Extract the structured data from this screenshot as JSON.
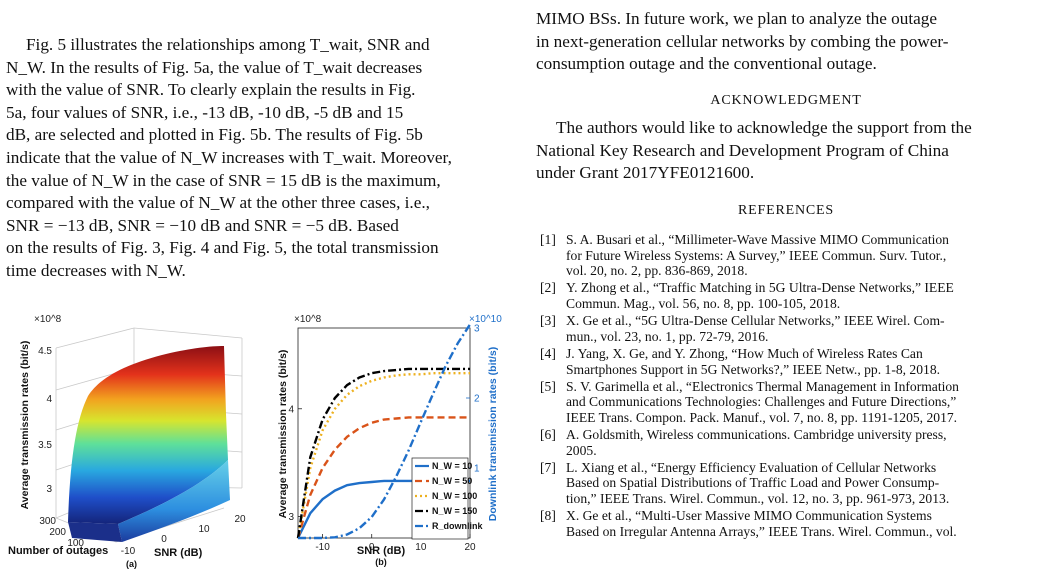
{
  "left_top_fragment": "",
  "left_paragraph": [
    "Fig. 5 illustrates the relationships among T_wait, SNR and",
    "N_W. In the results of Fig. 5a, the value of T_wait decreases",
    "with the value of SNR. To clearly explain the results in Fig.",
    "5a, four values of SNR, i.e., -13 dB, -10 dB, -5 dB and 15",
    "dB, are selected and plotted in Fig. 5b. The results of Fig. 5b",
    "indicate that the value of N_W increases with T_wait. Moreover,",
    "the value of N_W in the case of SNR = 15 dB is the maximum,",
    "compared with the value of N_W at the other three cases, i.e.,",
    "SNR = −13 dB, SNR = −10 dB and SNR = −5 dB. Based",
    "on the results of Fig. 3, Fig. 4 and Fig. 5, the total transmission",
    "time decreases with N_W."
  ],
  "right_intro": [
    "MIMO BSs. In future work, we plan to analyze the outage",
    "in next-generation cellular networks by combing the power-",
    "consumption outage and the conventional outage."
  ],
  "acknowledgment": {
    "heading": "ACKNOWLEDGMENT",
    "lines": [
      "The authors would like to acknowledge the support from the",
      "National Key Research and Development Program of China",
      "under Grant 2017YFE0121600."
    ]
  },
  "references": {
    "heading": "REFERENCES",
    "items": [
      {
        "num": "[1]",
        "lines": [
          "S. A. Busari et al., “Millimeter-Wave Massive MIMO Communication",
          "for Future Wireless Systems: A Survey,” IEEE Commun. Surv. Tutor.,",
          "vol. 20, no. 2, pp. 836-869, 2018."
        ]
      },
      {
        "num": "[2]",
        "lines": [
          "Y. Zhong et al., “Traffic Matching in 5G Ultra-Dense Networks,” IEEE",
          "Commun. Mag., vol. 56, no. 8, pp. 100-105, 2018."
        ]
      },
      {
        "num": "[3]",
        "lines": [
          "X. Ge et al., “5G Ultra-Dense Cellular Networks,” IEEE Wirel. Com-",
          "mun., vol. 23, no. 1, pp. 72-79, 2016."
        ]
      },
      {
        "num": "[4]",
        "lines": [
          "J. Yang, X. Ge, and Y. Zhong, “How Much of Wireless Rates Can",
          "Smartphones Support in 5G Networks?,” IEEE Netw., pp. 1-8, 2018."
        ]
      },
      {
        "num": "[5]",
        "lines": [
          "S. V. Garimella et al., “Electronics Thermal Management in Information",
          "and Communications Technologies: Challenges and Future Directions,”",
          "IEEE Trans. Compon. Pack. Manuf., vol. 7, no. 8, pp. 1191-1205, 2017."
        ]
      },
      {
        "num": "[6]",
        "lines": [
          "A. Goldsmith, Wireless communications. Cambridge university press,",
          "2005."
        ]
      },
      {
        "num": "[7]",
        "lines": [
          "L. Xiang et al., “Energy Efficiency Evaluation of Cellular Networks",
          "Based on Spatial Distributions of Traffic Load and Power Consump-",
          "tion,” IEEE Trans. Wirel. Commun., vol. 12, no. 3, pp. 961-973, 2013."
        ]
      },
      {
        "num": "[8]",
        "lines": [
          "X. Ge et al., “Multi-User Massive MIMO Communication Systems",
          "Based on Irregular Antenna Arrays,” IEEE Trans. Wirel. Commun., vol."
        ]
      }
    ]
  },
  "chart_data": [
    {
      "type": "surface",
      "panel_label": "(a)",
      "zlabel": "Average transmission rates (bit/s)",
      "zscale_label": "×10^8",
      "xlabel": "SNR (dB)",
      "ylabel": "Number of outages",
      "z_ticks": [
        "3",
        "3.5",
        "4",
        "4.5"
      ],
      "x_ticks": [
        "-10",
        "0",
        "10",
        "20"
      ],
      "y_ticks": [
        "100",
        "200",
        "300"
      ],
      "zlim": [
        2.6,
        4.8
      ],
      "surface_z_corners": {
        "low_snr_high_outage": 2.7,
        "low_snr_low_outage": 4.3,
        "high_snr_low_outage": 4.65,
        "high_snr_high_outage": 4.65
      }
    },
    {
      "type": "line",
      "panel_label": "(b)",
      "xlabel": "SNR (dB)",
      "ylabel_left": "Average transmission rates (bit/s)",
      "ylabel_right": "Downlink transmission rates (bit/s)",
      "left_scale_label": "×10^8",
      "right_scale_label": "×10^10",
      "x_ticks": [
        -10,
        0,
        10,
        20
      ],
      "y_left_ticks": [
        3,
        4
      ],
      "y_right_ticks": [
        1,
        2,
        3
      ],
      "xlim": [
        -15,
        20
      ],
      "ylim_left": [
        2.8,
        4.75
      ],
      "ylim_right": [
        0,
        3
      ],
      "x": [
        -15,
        -12.5,
        -10,
        -7.5,
        -5,
        -2.5,
        0,
        2.5,
        5,
        7.5,
        10,
        12.5,
        15,
        17.5,
        20
      ],
      "series": [
        {
          "name": "N_W = 10",
          "color": "#1f6fc9",
          "dash": "solid",
          "axis": "left",
          "values": [
            2.8,
            3.03,
            3.16,
            3.24,
            3.29,
            3.31,
            3.32,
            3.33,
            3.33,
            3.33,
            3.33,
            3.33,
            3.33,
            3.33,
            3.33
          ]
        },
        {
          "name": "N_W = 50",
          "color": "#d95319",
          "dash": "dashed",
          "axis": "left",
          "values": [
            2.8,
            3.2,
            3.45,
            3.62,
            3.74,
            3.82,
            3.87,
            3.9,
            3.91,
            3.92,
            3.92,
            3.92,
            3.92,
            3.92,
            3.92
          ]
        },
        {
          "name": "N_W = 100",
          "color": "#edb120",
          "dash": "dotted",
          "axis": "left",
          "values": [
            2.8,
            3.45,
            3.8,
            4.0,
            4.13,
            4.21,
            4.26,
            4.29,
            4.31,
            4.32,
            4.32,
            4.33,
            4.33,
            4.33,
            4.33
          ]
        },
        {
          "name": "N_W = 150",
          "color": "#000000",
          "dash": "dashdot",
          "axis": "left",
          "values": [
            2.8,
            3.55,
            3.9,
            4.1,
            4.22,
            4.29,
            4.33,
            4.35,
            4.36,
            4.37,
            4.37,
            4.37,
            4.37,
            4.37,
            4.37
          ]
        },
        {
          "name": "R_downlink",
          "color": "#1f6fc9",
          "dash": "dashdot",
          "axis": "right",
          "values": [
            0,
            0,
            0,
            0.01,
            0.05,
            0.14,
            0.3,
            0.55,
            0.88,
            1.25,
            1.66,
            2.06,
            2.45,
            2.78,
            3.05
          ]
        }
      ],
      "legend_position": "bottom-right"
    }
  ]
}
